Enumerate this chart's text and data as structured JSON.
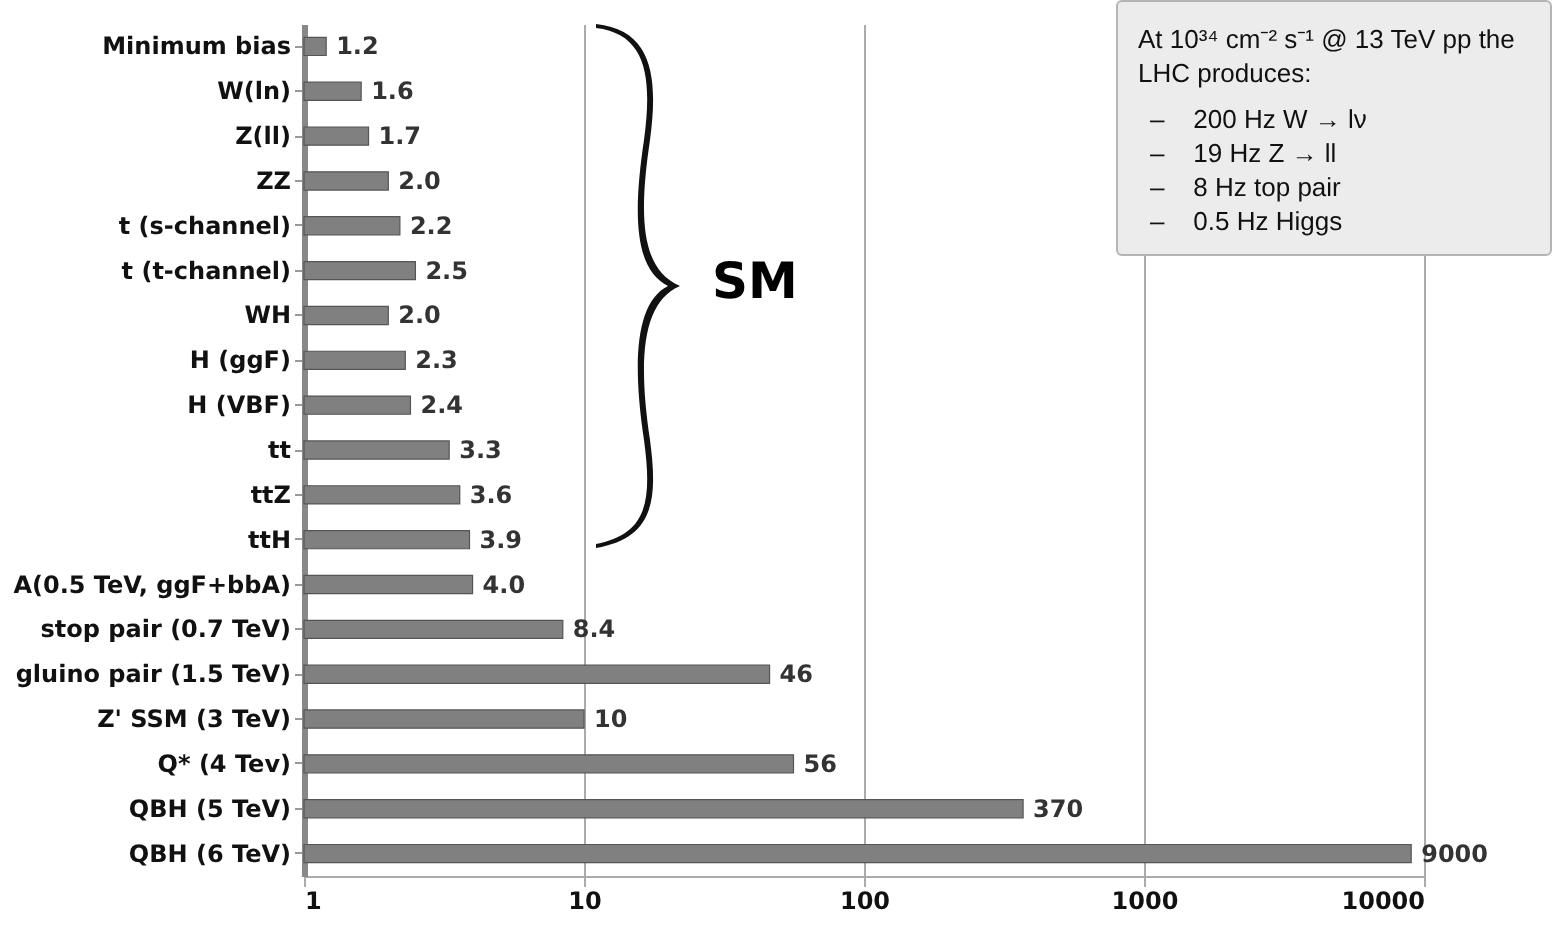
{
  "chart_data": {
    "type": "bar",
    "orientation": "horizontal",
    "log": "x",
    "grid": "x",
    "categories": [
      "Minimum bias",
      "W(ln)",
      "Z(ll)",
      "ZZ",
      "t (s-channel)",
      "t (t-channel)",
      "WH",
      "H (ggF)",
      "H (VBF)",
      "tt",
      "ttZ",
      "ttH",
      "A(0.5 TeV, ggF+bbA)",
      "stop pair (0.7 TeV)",
      "gluino pair (1.5 TeV)",
      "Z' SSM (3 TeV)",
      "Q* (4 Tev)",
      "QBH (5 TeV)",
      "QBH (6 TeV)"
    ],
    "values": [
      1.2,
      1.6,
      1.7,
      2.0,
      2.2,
      2.5,
      2.0,
      2.3,
      2.4,
      3.3,
      3.6,
      3.9,
      4.0,
      8.4,
      46,
      10,
      56,
      370,
      9000
    ],
    "value_labels": [
      "1.2",
      "1.6",
      "1.7",
      "2.0",
      "2.2",
      "2.5",
      "2.0",
      "2.3",
      "2.4",
      "3.3",
      "3.6",
      "3.9",
      "4.0",
      "8.4",
      "46",
      "10",
      "56",
      "370",
      "9000"
    ],
    "color": "#808080",
    "xlim": [
      1,
      10000
    ],
    "xticks": [
      1,
      10,
      100,
      1000,
      10000
    ],
    "annotations": [
      "SM",
      "At 10³⁴ cm⁻² s⁻¹ @ 13 TeV pp the LHC produces:",
      "–    200 Hz W → lν",
      "–    19 Hz Z → ll",
      "–    8 Hz top pair",
      "–    0.5 Hz Higgs"
    ]
  }
}
